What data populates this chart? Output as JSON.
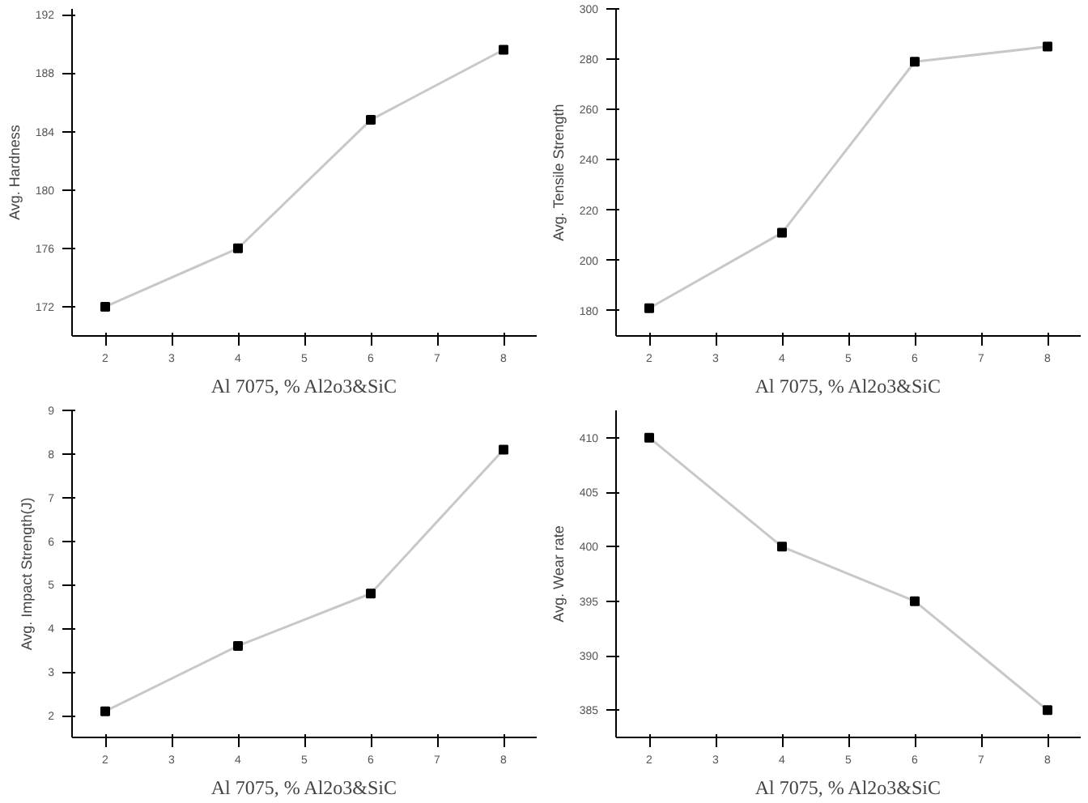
{
  "chart_data": [
    {
      "type": "line",
      "xlabel": "Al 7075, % Al2o3&SiC",
      "ylabel": "Avg. Hardness",
      "x": [
        2,
        4,
        6,
        8
      ],
      "series": [
        {
          "color": "#c8c8c8",
          "values": [
            172,
            176,
            184.8,
            189.6
          ]
        }
      ],
      "xlim": [
        1.5,
        8.5
      ],
      "xticks": [
        2,
        3,
        4,
        5,
        6,
        7,
        8
      ],
      "ylim": [
        170,
        192.4
      ],
      "yticks": [
        172,
        176,
        180,
        184,
        188,
        192
      ],
      "marker": "square",
      "grid": false
    },
    {
      "type": "line",
      "xlabel": "Al 7075, % Al2o3&SiC",
      "ylabel": "Avg. Tensile Strength",
      "x": [
        2,
        4,
        6,
        8
      ],
      "series": [
        {
          "color": "#c8c8c8",
          "values": [
            181,
            211,
            279,
            285
          ]
        }
      ],
      "xlim": [
        1.5,
        8.5
      ],
      "xticks": [
        2,
        3,
        4,
        5,
        6,
        7,
        8
      ],
      "ylim": [
        170,
        300
      ],
      "yticks": [
        180,
        200,
        220,
        240,
        260,
        280,
        300
      ],
      "marker": "square",
      "grid": false
    },
    {
      "type": "line",
      "xlabel": "Al 7075, % Al2o3&SiC",
      "ylabel": "Avg. Impact Strength(J)",
      "x": [
        2,
        4,
        6,
        8
      ],
      "series": [
        {
          "color": "#c8c8c8",
          "values": [
            2.1,
            3.6,
            4.8,
            8.1
          ]
        }
      ],
      "xlim": [
        1.5,
        8.5
      ],
      "xticks": [
        2,
        3,
        4,
        5,
        6,
        7,
        8
      ],
      "ylim": [
        1.5,
        9
      ],
      "yticks": [
        2,
        3,
        4,
        5,
        6,
        7,
        8,
        9
      ],
      "marker": "square",
      "grid": false
    },
    {
      "type": "line",
      "xlabel": "Al 7075, % Al2o3&SiC",
      "ylabel": "Avg. Wear rate",
      "x": [
        2,
        4,
        6,
        8
      ],
      "series": [
        {
          "color": "#c8c8c8",
          "values": [
            410,
            400,
            395,
            385
          ]
        }
      ],
      "xlim": [
        1.5,
        8.5
      ],
      "xticks": [
        2,
        3,
        4,
        5,
        6,
        7,
        8
      ],
      "ylim": [
        382.5,
        412.5
      ],
      "yticks": [
        385,
        390,
        395,
        400,
        405,
        410
      ],
      "marker": "square",
      "grid": false
    }
  ]
}
